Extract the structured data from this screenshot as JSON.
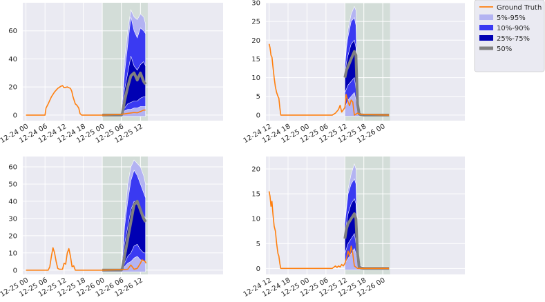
{
  "legend": {
    "placement": "outside-top-right",
    "entries": [
      {
        "label": "Ground Truth",
        "color": "#ff7f0e",
        "kind": "line"
      },
      {
        "label": "5%-95%",
        "color": "#b3b3f2",
        "kind": "patch"
      },
      {
        "label": "10%-90%",
        "color": "#3a3af2",
        "kind": "patch"
      },
      {
        "label": "25%-75%",
        "color": "#0000b3",
        "kind": "patch"
      },
      {
        "label": "50%",
        "color": "#808080",
        "kind": "thick-line"
      }
    ]
  },
  "chart_data": [
    {
      "type": "line",
      "title": "",
      "xlabel": "",
      "ylabel": "",
      "xlim": [
        -1,
        62
      ],
      "ylim": [
        -4,
        80
      ],
      "yticks": [
        0,
        20,
        40,
        60
      ],
      "xticks": [
        {
          "x": 0,
          "label": "12-24 00"
        },
        {
          "x": 6,
          "label": "12-24 06"
        },
        {
          "x": 12,
          "label": "12-24 12"
        },
        {
          "x": 18,
          "label": "12-24 18"
        },
        {
          "x": 24,
          "label": "12-25 00"
        },
        {
          "x": 30,
          "label": "12-25 06"
        },
        {
          "x": 36,
          "label": "12-25 12"
        }
      ],
      "forecast_region": [
        24,
        38.3
      ],
      "ground_truth": [
        [
          0,
          0
        ],
        [
          6,
          0
        ],
        [
          6.3,
          5
        ],
        [
          7,
          8
        ],
        [
          8,
          13
        ],
        [
          9,
          16.5
        ],
        [
          10,
          19
        ],
        [
          11,
          20.5
        ],
        [
          11.5,
          21
        ],
        [
          12,
          19.5
        ],
        [
          13,
          20
        ],
        [
          14,
          19
        ],
        [
          14.4,
          17
        ],
        [
          14.8,
          13
        ],
        [
          15.5,
          8
        ],
        [
          16,
          7
        ],
        [
          16.6,
          5
        ],
        [
          17,
          1
        ],
        [
          17.5,
          0
        ],
        [
          24,
          0
        ],
        [
          30,
          0.5
        ],
        [
          31,
          0.8
        ],
        [
          32,
          1.2
        ],
        [
          33,
          1.5
        ],
        [
          34,
          1.8
        ],
        [
          35,
          1.6
        ],
        [
          36,
          2.5
        ],
        [
          37,
          3.5
        ],
        [
          37.6,
          3.5
        ]
      ],
      "forecast": {
        "x": [
          24,
          28,
          30,
          30.3,
          31,
          32,
          33,
          34,
          35,
          36,
          37,
          37.6
        ],
        "q05": [
          -1,
          -1,
          -1,
          -1,
          -1,
          -1,
          -1,
          -1,
          -1,
          -1,
          -1,
          -1
        ],
        "q95": [
          0.5,
          0.5,
          0.6,
          10,
          40,
          60,
          75,
          70,
          68,
          72,
          70,
          65
        ],
        "q10": [
          0,
          0,
          0,
          0,
          3,
          4,
          4,
          5,
          5,
          6,
          6,
          6
        ],
        "q90": [
          0,
          0,
          0.3,
          8,
          30,
          50,
          70,
          60,
          55,
          62,
          60,
          58
        ],
        "q25": [
          0,
          0,
          0,
          0,
          5,
          8,
          9,
          10,
          10,
          12,
          13,
          13
        ],
        "q75": [
          0,
          0,
          0.2,
          4,
          18,
          30,
          42,
          35,
          32,
          36,
          38,
          35
        ],
        "q50": [
          0,
          0,
          0,
          1,
          10,
          20,
          28,
          30,
          25,
          30,
          24,
          22
        ]
      }
    },
    {
      "type": "line",
      "title": "",
      "xlabel": "",
      "ylabel": "",
      "xlim": [
        -1,
        62
      ],
      "ylim": [
        -1.5,
        30
      ],
      "yticks": [
        0,
        5,
        10,
        15,
        20,
        25,
        30
      ],
      "xticks": [
        {
          "x": 0,
          "label": "12-24 12"
        },
        {
          "x": 6,
          "label": "12-24 18"
        },
        {
          "x": 12,
          "label": "12-25 00"
        },
        {
          "x": 18,
          "label": "12-25 06"
        },
        {
          "x": 24,
          "label": "12-25 12"
        },
        {
          "x": 30,
          "label": "12-25 18"
        },
        {
          "x": 36,
          "label": "12-26 00"
        }
      ],
      "forecast_region": [
        24,
        38.3
      ],
      "ground_truth": [
        [
          0,
          19
        ],
        [
          0.3,
          18
        ],
        [
          0.6,
          16
        ],
        [
          0.9,
          15.5
        ],
        [
          1.2,
          13
        ],
        [
          1.6,
          10
        ],
        [
          2,
          7.5
        ],
        [
          2.4,
          6
        ],
        [
          2.8,
          5
        ],
        [
          3.1,
          4.5
        ],
        [
          3.4,
          2
        ],
        [
          3.7,
          0
        ],
        [
          6,
          0
        ],
        [
          20,
          0
        ],
        [
          21,
          0.5
        ],
        [
          22,
          1.5
        ],
        [
          22.5,
          2.6
        ],
        [
          23,
          0.8
        ],
        [
          24,
          2
        ],
        [
          24.4,
          5.5
        ],
        [
          25,
          3.5
        ],
        [
          25.5,
          2.5
        ],
        [
          26,
          4
        ],
        [
          26.5,
          3.5
        ],
        [
          27,
          0
        ],
        [
          28,
          0.5
        ],
        [
          29,
          0.2
        ],
        [
          38,
          0
        ]
      ],
      "forecast": {
        "x": [
          24,
          24.5,
          25,
          26,
          27,
          27.5,
          28,
          28.5,
          29,
          30,
          38
        ],
        "q05": [
          -0.3,
          -0.3,
          -0.3,
          -0.3,
          -0.3,
          -0.3,
          -0.3,
          -0.3,
          -0.3,
          -0.3,
          -0.3
        ],
        "q95": [
          14,
          20,
          23,
          27,
          29,
          28,
          10,
          1,
          0.5,
          0.3,
          0.3
        ],
        "q10": [
          2,
          3,
          4,
          5,
          6,
          4,
          1,
          0,
          0,
          0,
          0
        ],
        "q90": [
          13,
          18,
          21,
          25,
          26,
          24,
          8,
          0.8,
          0.3,
          0.2,
          0.2
        ],
        "q25": [
          6,
          7,
          8,
          9,
          10,
          7,
          2,
          0.2,
          0,
          0,
          0
        ],
        "q75": [
          11,
          14,
          16,
          19,
          20,
          18,
          5,
          0.5,
          0.2,
          0.1,
          0.1
        ],
        "q50": [
          10,
          12,
          13,
          15,
          17,
          16,
          3,
          0.3,
          0.1,
          0,
          0
        ]
      }
    },
    {
      "type": "line",
      "title": "",
      "xlabel": "",
      "ylabel": "",
      "xlim": [
        -1,
        62
      ],
      "ylim": [
        -2.5,
        66
      ],
      "yticks": [
        0,
        10,
        20,
        30,
        40,
        50,
        60
      ],
      "xticks": [
        {
          "x": 0,
          "label": "12-25 00"
        },
        {
          "x": 6,
          "label": "12-25 06"
        },
        {
          "x": 12,
          "label": "12-25 12"
        },
        {
          "x": 18,
          "label": "12-25 18"
        },
        {
          "x": 24,
          "label": "12-26 00"
        },
        {
          "x": 30,
          "label": "12-26 06"
        },
        {
          "x": 36,
          "label": "12-26 12"
        }
      ],
      "forecast_region": [
        24,
        38.3
      ],
      "ground_truth": [
        [
          0,
          0
        ],
        [
          7,
          0
        ],
        [
          7.5,
          2
        ],
        [
          8,
          8
        ],
        [
          8.5,
          13
        ],
        [
          9,
          10
        ],
        [
          9.5,
          5
        ],
        [
          10,
          1
        ],
        [
          10.5,
          0.5
        ],
        [
          11.5,
          0.5
        ],
        [
          12,
          4
        ],
        [
          12.5,
          3.5
        ],
        [
          13,
          10
        ],
        [
          13.5,
          12.5
        ],
        [
          14,
          8
        ],
        [
          14.5,
          2
        ],
        [
          15,
          2.5
        ],
        [
          15.5,
          0
        ],
        [
          24,
          0
        ],
        [
          30,
          0.3
        ],
        [
          32,
          0.5
        ],
        [
          33,
          3
        ],
        [
          34,
          0.5
        ],
        [
          35,
          1
        ],
        [
          36,
          4
        ],
        [
          36.5,
          6
        ],
        [
          37.5,
          5
        ],
        [
          37.8,
          4
        ]
      ],
      "forecast": {
        "x": [
          24,
          28,
          30,
          30.3,
          31,
          32,
          33,
          34,
          35,
          36,
          37,
          37.6
        ],
        "q05": [
          -1,
          -1,
          -1,
          -1,
          -1,
          -1,
          -1,
          -1,
          -1,
          -1,
          -1,
          -1
        ],
        "q95": [
          0.5,
          0.5,
          0.6,
          8,
          30,
          50,
          60,
          64,
          62,
          60,
          55,
          50
        ],
        "q10": [
          0,
          0,
          0,
          0,
          2,
          4,
          5,
          7,
          8,
          6,
          5,
          5
        ],
        "q90": [
          0,
          0,
          0.3,
          6,
          25,
          40,
          52,
          58,
          55,
          50,
          45,
          42
        ],
        "q25": [
          0,
          0,
          0,
          0,
          4,
          8,
          10,
          14,
          15,
          12,
          10,
          10
        ],
        "q75": [
          0,
          0,
          0.2,
          3,
          15,
          25,
          35,
          40,
          38,
          35,
          32,
          30
        ],
        "q50": [
          0,
          0,
          0,
          1,
          8,
          18,
          28,
          38,
          40,
          35,
          30,
          28
        ]
      }
    },
    {
      "type": "line",
      "title": "",
      "xlabel": "",
      "ylabel": "",
      "xlim": [
        -1,
        62
      ],
      "ylim": [
        -1.2,
        22.5
      ],
      "yticks": [
        0,
        5,
        10,
        15,
        20
      ],
      "xticks": [
        {
          "x": 0,
          "label": "12-24 12"
        },
        {
          "x": 6,
          "label": "12-24 18"
        },
        {
          "x": 12,
          "label": "12-25 00"
        },
        {
          "x": 18,
          "label": "12-25 06"
        },
        {
          "x": 24,
          "label": "12-25 12"
        },
        {
          "x": 30,
          "label": "12-25 18"
        },
        {
          "x": 36,
          "label": "12-26 00"
        }
      ],
      "forecast_region": [
        24,
        38.3
      ],
      "ground_truth": [
        [
          0,
          15.5
        ],
        [
          0.3,
          14.5
        ],
        [
          0.6,
          12.5
        ],
        [
          0.9,
          13.5
        ],
        [
          1.2,
          11
        ],
        [
          1.6,
          8.5
        ],
        [
          2,
          7.5
        ],
        [
          2.4,
          5
        ],
        [
          2.8,
          3
        ],
        [
          3.1,
          2.5
        ],
        [
          3.4,
          1
        ],
        [
          3.7,
          0
        ],
        [
          6,
          0
        ],
        [
          20,
          0
        ],
        [
          21,
          0.5
        ],
        [
          21.5,
          0.2
        ],
        [
          22,
          0.5
        ],
        [
          22.5,
          0.3
        ],
        [
          23,
          0.8
        ],
        [
          23.5,
          0.5
        ],
        [
          24,
          1
        ],
        [
          24.5,
          2
        ],
        [
          25,
          3.5
        ],
        [
          25.5,
          2.5
        ],
        [
          26,
          4.5
        ],
        [
          26.5,
          3
        ],
        [
          27,
          0.5
        ],
        [
          28,
          0
        ],
        [
          38,
          0
        ]
      ],
      "forecast": {
        "x": [
          24,
          24.5,
          25,
          26,
          27,
          27.5,
          28,
          28.5,
          29,
          30,
          38
        ],
        "q05": [
          -0.3,
          -0.3,
          -0.3,
          -0.3,
          -0.3,
          -0.3,
          -0.3,
          -0.3,
          -0.3,
          -0.3,
          -0.3
        ],
        "q95": [
          10,
          13,
          16,
          19,
          21,
          20,
          8,
          1,
          0.5,
          0.3,
          0.3
        ],
        "q10": [
          1,
          1.5,
          2,
          3,
          4,
          3,
          1,
          0,
          0,
          0,
          0
        ],
        "q90": [
          9,
          12,
          15,
          17,
          18,
          17,
          6,
          0.8,
          0.3,
          0.2,
          0.2
        ],
        "q25": [
          3,
          4,
          5,
          6,
          7,
          5,
          2,
          0.2,
          0,
          0,
          0
        ],
        "q75": [
          7,
          9,
          11,
          13,
          14,
          13,
          4,
          0.5,
          0.2,
          0.1,
          0.1
        ],
        "q50": [
          6,
          8,
          9,
          10,
          11,
          10,
          3,
          0.3,
          0.1,
          0,
          0
        ]
      }
    }
  ]
}
